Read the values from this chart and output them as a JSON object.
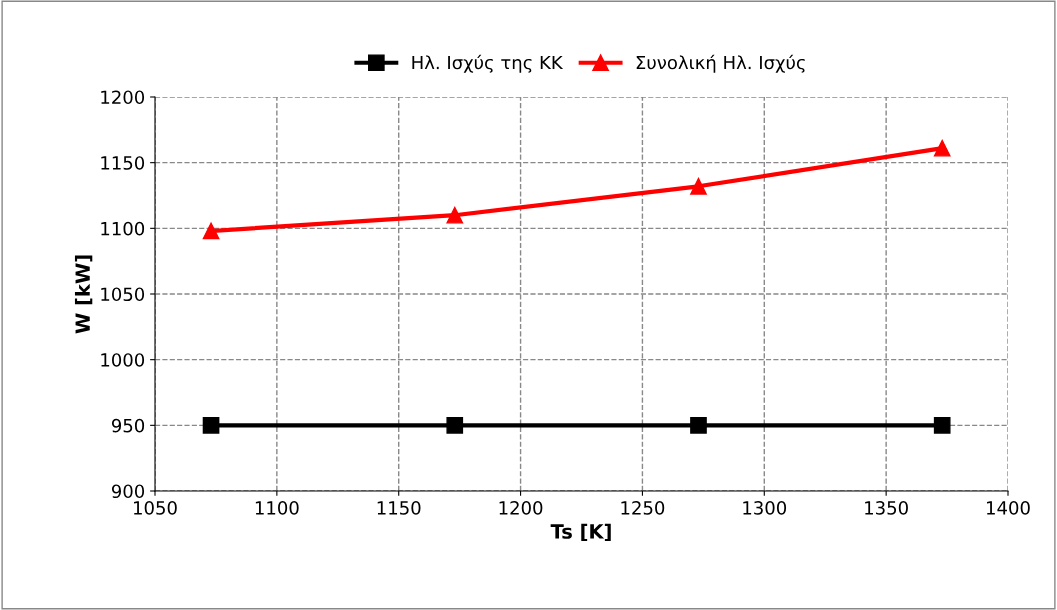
{
  "chart_data": {
    "type": "line",
    "xlabel": "Ts [K]",
    "ylabel": "W [kW]",
    "x": [
      1073,
      1173,
      1273,
      1373
    ],
    "series": [
      {
        "name": "Ηλ. Ισχύς της ΚΚ",
        "color": "#000000",
        "marker": "square",
        "values": [
          950,
          950,
          950,
          950
        ]
      },
      {
        "name": "Συνολική Ηλ. Ισχύς",
        "color": "#ff0000",
        "marker": "triangle",
        "values": [
          1098,
          1110,
          1132,
          1161
        ]
      }
    ],
    "xlim": [
      1050,
      1400
    ],
    "xticks": [
      1050,
      1100,
      1150,
      1200,
      1250,
      1300,
      1350,
      1400
    ],
    "ylim": [
      900,
      1200
    ],
    "yticks": [
      900,
      950,
      1000,
      1050,
      1100,
      1150,
      1200
    ],
    "grid": true,
    "legend": "top",
    "line_style": "solid"
  }
}
